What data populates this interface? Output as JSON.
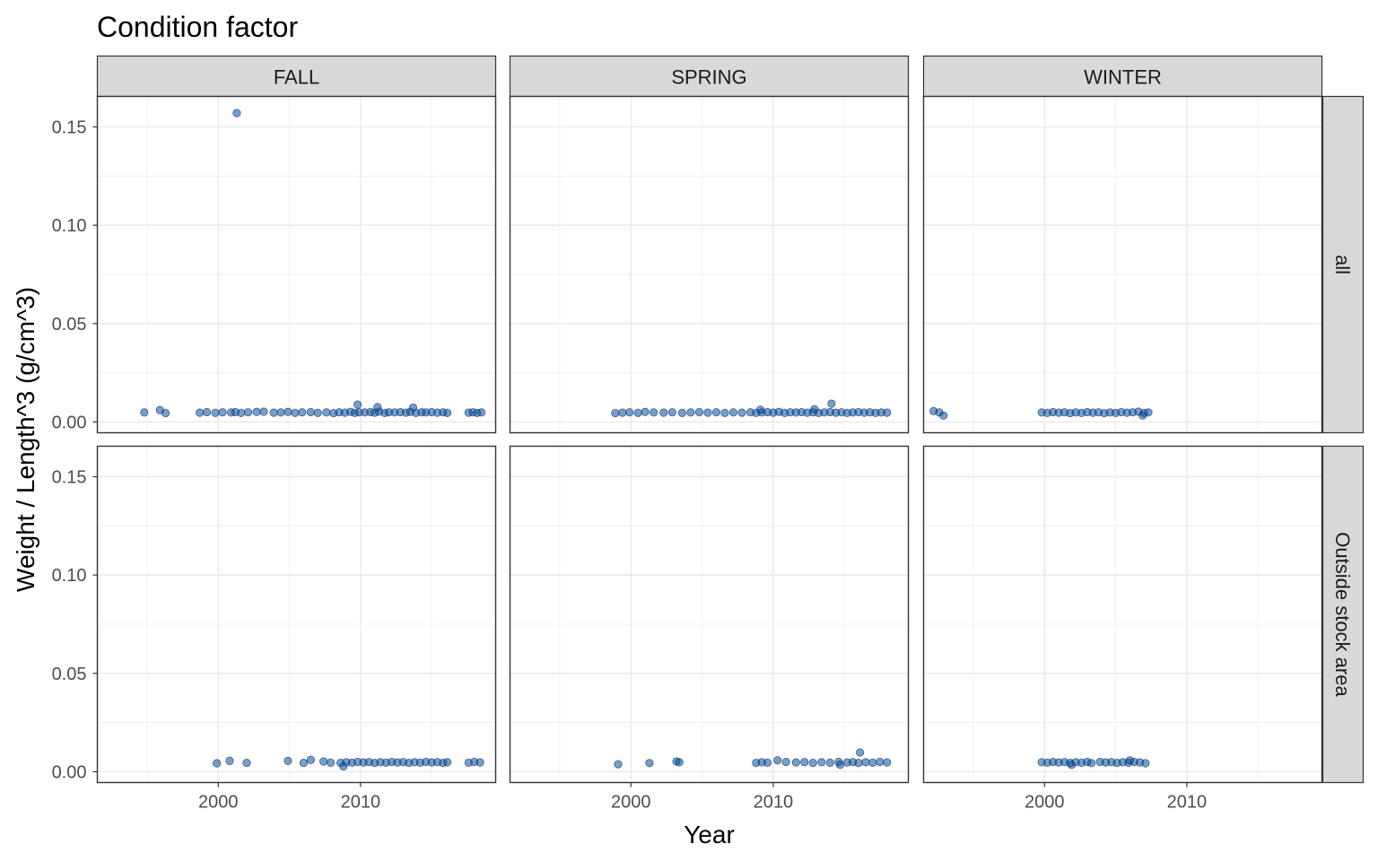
{
  "chart_data": {
    "type": "scatter",
    "title": "Condition factor",
    "xlabel": "Year",
    "ylabel": "Weight / Length^3 (g/cm^3)",
    "columns": [
      "FALL",
      "SPRING",
      "WINTER"
    ],
    "rows": [
      "all",
      "Outside stock area"
    ],
    "xlim": [
      1991.5,
      2019.5
    ],
    "ylim": [
      -0.0055,
      0.1655
    ],
    "x_ticks": [
      2000,
      2010
    ],
    "x_tick_labels": [
      "2000",
      "2010"
    ],
    "y_ticks": [
      0.0,
      0.05,
      0.1,
      0.15
    ],
    "y_tick_labels": [
      "0.00",
      "0.05",
      "0.10",
      "0.15"
    ],
    "grid": true,
    "point_color": "#08519c",
    "panels": [
      {
        "column": "FALL",
        "row": "all",
        "x": [
          1994.8,
          1995.9,
          1996.3,
          1998.7,
          1999.2,
          1999.8,
          2000.3,
          2000.9,
          2001.2,
          2001.6,
          2002.1,
          2002.7,
          2003.2,
          2003.9,
          2004.4,
          2004.9,
          2005.4,
          2005.9,
          2006.5,
          2007.0,
          2007.6,
          2008.1,
          2008.5,
          2008.9,
          2009.3,
          2009.6,
          2009.9,
          2010.3,
          2010.7,
          2011.0,
          2011.3,
          2011.7,
          2012.0,
          2012.4,
          2012.8,
          2013.2,
          2013.5,
          2013.9,
          2014.3,
          2014.6,
          2015.0,
          2015.4,
          2015.8,
          2016.1,
          2017.6,
          2017.9,
          2018.2,
          2018.5,
          2001.3,
          2009.8,
          2011.2,
          2013.7
        ],
        "y": [
          0.0048,
          0.006,
          0.0045,
          0.0047,
          0.005,
          0.0046,
          0.0049,
          0.0048,
          0.005,
          0.0046,
          0.0049,
          0.0051,
          0.0052,
          0.0047,
          0.0048,
          0.0051,
          0.0046,
          0.0049,
          0.005,
          0.0046,
          0.0048,
          0.0045,
          0.0049,
          0.0047,
          0.0051,
          0.0046,
          0.0049,
          0.0048,
          0.005,
          0.0047,
          0.0052,
          0.0046,
          0.0049,
          0.0048,
          0.005,
          0.0047,
          0.0051,
          0.0046,
          0.0049,
          0.0048,
          0.005,
          0.0047,
          0.0049,
          0.0046,
          0.0047,
          0.0049,
          0.0046,
          0.0048,
          0.157,
          0.0088,
          0.0075,
          0.0073
        ]
      },
      {
        "column": "SPRING",
        "row": "all",
        "x": [
          1998.9,
          1999.4,
          1999.9,
          2000.5,
          2001.0,
          2001.6,
          2002.3,
          2002.9,
          2003.6,
          2004.2,
          2004.8,
          2005.4,
          2006.0,
          2006.6,
          2007.2,
          2007.8,
          2008.4,
          2008.8,
          2009.2,
          2009.6,
          2010.0,
          2010.4,
          2010.8,
          2011.2,
          2011.6,
          2012.0,
          2012.4,
          2012.8,
          2013.2,
          2013.6,
          2014.0,
          2014.4,
          2014.8,
          2015.2,
          2015.6,
          2016.0,
          2016.4,
          2016.8,
          2017.2,
          2017.6,
          2018.0,
          2014.1,
          2009.1,
          2012.9
        ],
        "y": [
          0.0045,
          0.0047,
          0.0049,
          0.0046,
          0.0051,
          0.0048,
          0.0047,
          0.0049,
          0.0046,
          0.0048,
          0.005,
          0.0047,
          0.0049,
          0.0046,
          0.0048,
          0.0047,
          0.0049,
          0.0046,
          0.0048,
          0.005,
          0.0047,
          0.0051,
          0.0046,
          0.0049,
          0.0048,
          0.005,
          0.0047,
          0.0049,
          0.0046,
          0.0048,
          0.005,
          0.0047,
          0.0049,
          0.0046,
          0.0048,
          0.005,
          0.0047,
          0.0049,
          0.0046,
          0.0048,
          0.0047,
          0.0093,
          0.0062,
          0.0064
        ]
      },
      {
        "column": "WINTER",
        "row": "all",
        "x": [
          1992.2,
          1992.6,
          1992.9,
          1999.8,
          2000.2,
          2000.6,
          2001.0,
          2001.4,
          2001.8,
          2002.2,
          2002.6,
          2003.0,
          2003.4,
          2003.8,
          2004.2,
          2004.6,
          2005.0,
          2005.4,
          2005.8,
          2006.2,
          2006.6,
          2007.0,
          2007.3,
          2006.9
        ],
        "y": [
          0.0055,
          0.0048,
          0.0032,
          0.0048,
          0.0046,
          0.005,
          0.0047,
          0.0049,
          0.0045,
          0.0048,
          0.0046,
          0.005,
          0.0047,
          0.0049,
          0.0045,
          0.0048,
          0.0046,
          0.005,
          0.0047,
          0.0049,
          0.0052,
          0.0046,
          0.0048,
          0.0033
        ]
      },
      {
        "column": "FALL",
        "row": "Outside stock area",
        "x": [
          1999.9,
          2000.8,
          2002.0,
          2004.9,
          2006.0,
          2006.5,
          2007.4,
          2007.9,
          2008.6,
          2009.0,
          2009.4,
          2009.8,
          2010.2,
          2010.6,
          2011.0,
          2011.4,
          2011.8,
          2012.2,
          2012.6,
          2013.0,
          2013.4,
          2013.8,
          2014.2,
          2014.6,
          2015.0,
          2015.4,
          2015.8,
          2016.1,
          2017.6,
          2018.0,
          2018.4,
          2008.8
        ],
        "y": [
          0.0043,
          0.0055,
          0.0045,
          0.0055,
          0.0045,
          0.006,
          0.0052,
          0.0046,
          0.0045,
          0.0048,
          0.0046,
          0.005,
          0.0047,
          0.0049,
          0.0045,
          0.0048,
          0.0046,
          0.005,
          0.0047,
          0.0049,
          0.0045,
          0.0048,
          0.0046,
          0.005,
          0.0047,
          0.0049,
          0.0045,
          0.0048,
          0.0046,
          0.005,
          0.0047,
          0.0027
        ]
      },
      {
        "column": "SPRING",
        "row": "Outside stock area",
        "x": [
          1999.1,
          2001.3,
          2003.2,
          2003.4,
          2008.8,
          2009.2,
          2009.6,
          2010.3,
          2010.9,
          2011.6,
          2012.2,
          2012.8,
          2013.4,
          2014.0,
          2014.6,
          2015.2,
          2015.6,
          2016.0,
          2016.5,
          2017.0,
          2017.5,
          2018.0,
          2016.1,
          2014.7
        ],
        "y": [
          0.0038,
          0.0044,
          0.0052,
          0.0048,
          0.0045,
          0.0048,
          0.0046,
          0.0058,
          0.005,
          0.0047,
          0.0049,
          0.0045,
          0.0048,
          0.0046,
          0.005,
          0.0047,
          0.0049,
          0.0045,
          0.0048,
          0.0046,
          0.005,
          0.0047,
          0.0098,
          0.0035
        ]
      },
      {
        "column": "WINTER",
        "row": "Outside stock area",
        "x": [
          1999.8,
          2000.2,
          2000.6,
          2001.0,
          2001.4,
          2001.8,
          2002.2,
          2002.6,
          2003.0,
          2003.3,
          2003.9,
          2004.3,
          2004.7,
          2005.1,
          2005.5,
          2005.9,
          2006.3,
          2006.7,
          2007.1,
          2001.9,
          2006.0
        ],
        "y": [
          0.0048,
          0.0046,
          0.005,
          0.0047,
          0.0049,
          0.0045,
          0.0048,
          0.0046,
          0.005,
          0.0044,
          0.005,
          0.0047,
          0.0049,
          0.0045,
          0.0048,
          0.0046,
          0.005,
          0.0047,
          0.0043,
          0.0035,
          0.0058
        ]
      }
    ]
  }
}
